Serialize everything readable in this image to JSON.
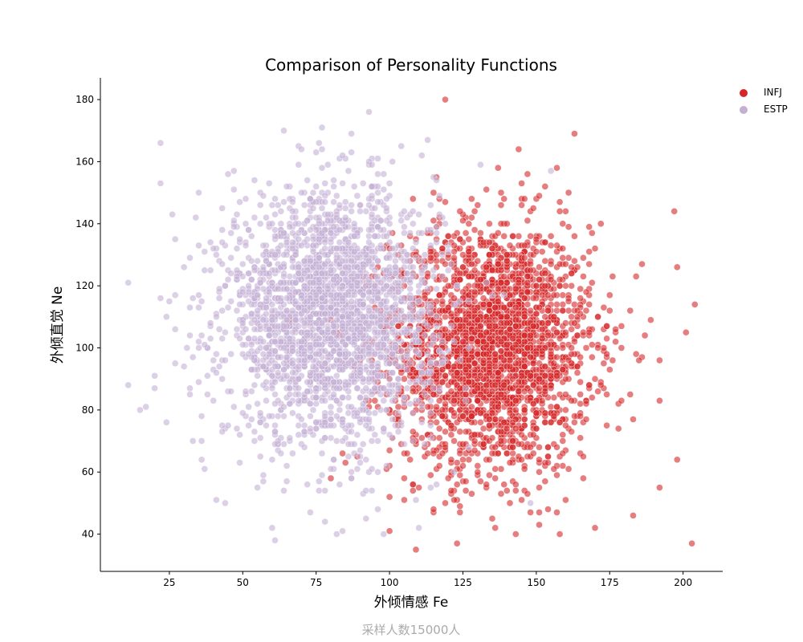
{
  "chart_data": {
    "type": "scatter",
    "title": "Comparison of Personality Functions",
    "xlabel": "外倾情感 Fe",
    "ylabel": "外倾直觉 Ne",
    "footer": "采样人数15000人",
    "xlim": [
      1.5,
      213.5
    ],
    "ylim": [
      28,
      187
    ],
    "xticks": [
      25,
      50,
      75,
      100,
      125,
      150,
      175,
      200
    ],
    "yticks": [
      40,
      60,
      80,
      100,
      120,
      140,
      160,
      180
    ],
    "grid": false,
    "legend_position": "top-right (outside)",
    "sample_size": 15000,
    "series": [
      {
        "name": "INFJ",
        "color": "#d62728",
        "opacity": 0.6,
        "distribution": {
          "x_mean": 135,
          "x_sd": 17,
          "y_mean": 100,
          "y_sd": 20,
          "n_drawn": 2500
        },
        "outliers": [
          [
            119,
            180
          ],
          [
            144,
            164
          ],
          [
            203,
            37
          ],
          [
            204,
            114
          ],
          [
            198,
            126
          ],
          [
            201,
            105
          ],
          [
            183,
            46
          ],
          [
            123,
            37
          ],
          [
            109,
            35
          ],
          [
            100,
            41
          ],
          [
            143,
            40
          ],
          [
            192,
            55
          ],
          [
            198,
            64
          ],
          [
            192,
            83
          ],
          [
            192,
            96
          ]
        ]
      },
      {
        "name": "ESTP",
        "color": "#c5b0d5",
        "opacity": 0.6,
        "distribution": {
          "x_mean": 80,
          "x_sd": 18,
          "y_mean": 110,
          "y_sd": 20,
          "n_drawn": 2500
        },
        "outliers": [
          [
            11,
            121
          ],
          [
            11,
            88
          ],
          [
            17,
            81
          ],
          [
            22,
            166
          ],
          [
            24,
            76
          ],
          [
            20,
            87
          ],
          [
            41,
            51
          ],
          [
            44,
            50
          ],
          [
            61,
            38
          ],
          [
            60,
            42
          ],
          [
            82,
            40
          ],
          [
            78,
            44
          ],
          [
            148,
            50
          ],
          [
            155,
            157
          ],
          [
            131,
            159
          ]
        ]
      }
    ]
  }
}
